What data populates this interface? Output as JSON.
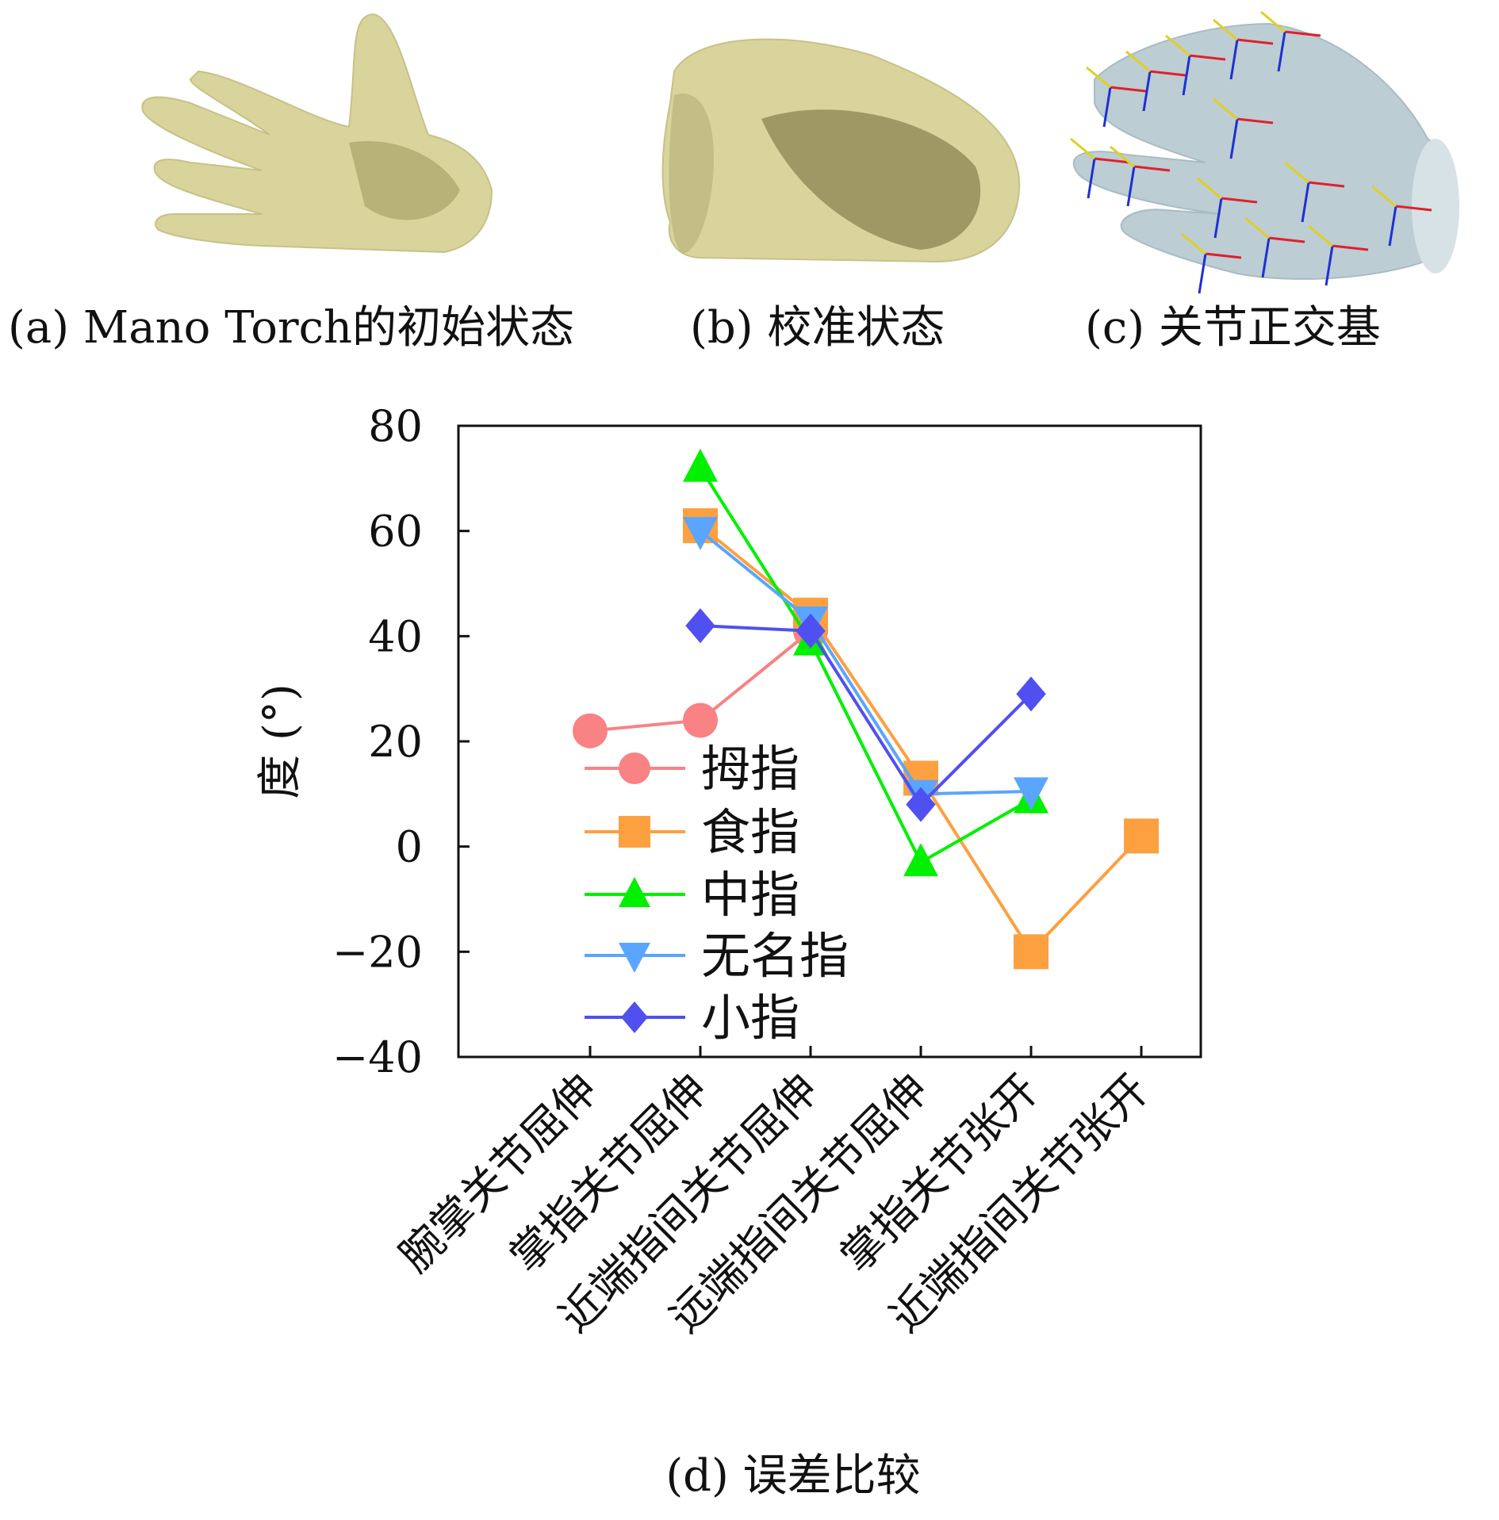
{
  "panels": {
    "a": "(a) Mano Torch的初始状态",
    "b": "(b) 校准状态",
    "c": "(c) 关节正交基",
    "d": "(d) 误差比较"
  },
  "colors": {
    "hand_yellow": "#d9d49b",
    "hand_shadow": "#a9a26a",
    "hand_blue": "#bccdd4",
    "axis_red": "#e0202a",
    "axis_blue": "#2030d0",
    "axis_yellow": "#e0d020"
  },
  "chart_data": {
    "type": "line",
    "ylabel": "度 (°)",
    "ylim": [
      -40,
      80
    ],
    "yticks": [
      80,
      60,
      40,
      20,
      0,
      -20,
      -40
    ],
    "ytick_labels": [
      "80",
      "60",
      "40",
      "20",
      "0",
      "−20",
      "−40"
    ],
    "categories": [
      "腕掌关节屈伸",
      "掌指关节屈伸",
      "近端指间关节屈伸",
      "远端指间关节屈伸",
      "掌指关节张开",
      "近端指间关节张开"
    ],
    "legend_position": "center-left",
    "series": [
      {
        "name": "拇指",
        "color": "#f88284",
        "marker": "circle",
        "values": [
          22,
          24,
          41,
          null,
          null,
          null
        ]
      },
      {
        "name": "食指",
        "color": "#fca040",
        "marker": "square",
        "values": [
          null,
          61,
          44,
          13,
          -20,
          2
        ]
      },
      {
        "name": "中指",
        "color": "#00f000",
        "marker": "triangle-up",
        "values": [
          null,
          72,
          39,
          -3,
          9,
          null
        ]
      },
      {
        "name": "无名指",
        "color": "#5aa5ff",
        "marker": "triangle-down",
        "values": [
          null,
          60,
          43,
          10,
          10.5,
          null
        ]
      },
      {
        "name": "小指",
        "color": "#5050f0",
        "marker": "diamond",
        "values": [
          null,
          42,
          41,
          8,
          29,
          null
        ]
      }
    ]
  }
}
